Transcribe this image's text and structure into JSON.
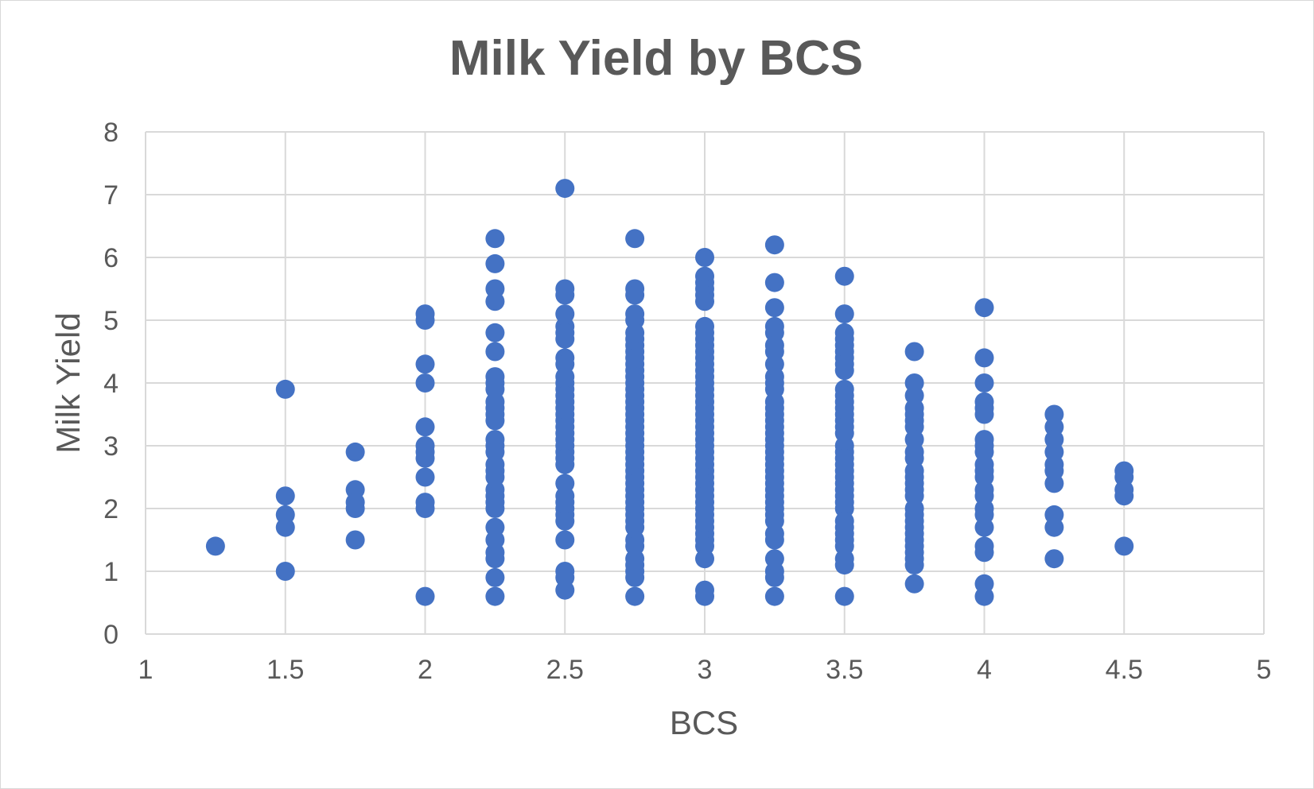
{
  "chart_data": {
    "type": "scatter",
    "title": "Milk Yield by BCS",
    "xlabel": "BCS",
    "ylabel": "Milk Yield",
    "xlim": [
      1,
      5
    ],
    "ylim": [
      0,
      8
    ],
    "xticks": [
      "1",
      "1.5",
      "2",
      "2.5",
      "3",
      "3.5",
      "4",
      "4.5",
      "5"
    ],
    "yticks": [
      "0",
      "1",
      "2",
      "3",
      "4",
      "5",
      "6",
      "7",
      "8"
    ],
    "grid": true,
    "legend": "none",
    "marker_color": "#4472C4",
    "series": [
      {
        "points": [
          [
            1.25,
            1.4
          ],
          [
            1.5,
            3.9
          ],
          [
            1.5,
            2.2
          ],
          [
            1.5,
            1.9
          ],
          [
            1.5,
            1.7
          ],
          [
            1.5,
            1.0
          ],
          [
            1.75,
            2.9
          ],
          [
            1.75,
            2.3
          ],
          [
            1.75,
            2.1
          ],
          [
            1.75,
            2.0
          ],
          [
            1.75,
            1.5
          ],
          [
            2,
            5.1
          ],
          [
            2,
            5.0
          ],
          [
            2,
            4.3
          ],
          [
            2,
            4.0
          ],
          [
            2,
            3.3
          ],
          [
            2,
            3.0
          ],
          [
            2,
            2.9
          ],
          [
            2,
            2.8
          ],
          [
            2,
            2.5
          ],
          [
            2,
            2.1
          ],
          [
            2,
            2.0
          ],
          [
            2,
            0.6
          ],
          [
            2.25,
            6.3
          ],
          [
            2.25,
            5.9
          ],
          [
            2.25,
            5.5
          ],
          [
            2.25,
            5.3
          ],
          [
            2.25,
            4.8
          ],
          [
            2.25,
            4.5
          ],
          [
            2.25,
            4.1
          ],
          [
            2.25,
            4.0
          ],
          [
            2.25,
            3.9
          ],
          [
            2.25,
            3.7
          ],
          [
            2.25,
            3.6
          ],
          [
            2.25,
            3.5
          ],
          [
            2.25,
            3.4
          ],
          [
            2.25,
            3.1
          ],
          [
            2.25,
            3.0
          ],
          [
            2.25,
            2.9
          ],
          [
            2.25,
            2.7
          ],
          [
            2.25,
            2.6
          ],
          [
            2.25,
            2.5
          ],
          [
            2.25,
            2.3
          ],
          [
            2.25,
            2.2
          ],
          [
            2.25,
            2.1
          ],
          [
            2.25,
            2.0
          ],
          [
            2.25,
            1.7
          ],
          [
            2.25,
            1.5
          ],
          [
            2.25,
            1.3
          ],
          [
            2.25,
            1.2
          ],
          [
            2.25,
            0.9
          ],
          [
            2.25,
            0.6
          ],
          [
            2.5,
            7.1
          ],
          [
            2.5,
            5.5
          ],
          [
            2.5,
            5.4
          ],
          [
            2.5,
            5.1
          ],
          [
            2.5,
            4.9
          ],
          [
            2.5,
            4.8
          ],
          [
            2.5,
            4.7
          ],
          [
            2.5,
            4.4
          ],
          [
            2.5,
            4.3
          ],
          [
            2.5,
            4.1
          ],
          [
            2.5,
            4.0
          ],
          [
            2.5,
            3.9
          ],
          [
            2.5,
            3.8
          ],
          [
            2.5,
            3.7
          ],
          [
            2.5,
            3.6
          ],
          [
            2.5,
            3.5
          ],
          [
            2.5,
            3.4
          ],
          [
            2.5,
            3.3
          ],
          [
            2.5,
            3.2
          ],
          [
            2.5,
            3.1
          ],
          [
            2.5,
            3.0
          ],
          [
            2.5,
            2.9
          ],
          [
            2.5,
            2.8
          ],
          [
            2.5,
            2.7
          ],
          [
            2.5,
            2.4
          ],
          [
            2.5,
            2.2
          ],
          [
            2.5,
            2.1
          ],
          [
            2.5,
            2.0
          ],
          [
            2.5,
            1.9
          ],
          [
            2.5,
            1.8
          ],
          [
            2.5,
            1.5
          ],
          [
            2.5,
            1.0
          ],
          [
            2.5,
            0.9
          ],
          [
            2.5,
            0.7
          ],
          [
            2.75,
            6.3
          ],
          [
            2.75,
            5.5
          ],
          [
            2.75,
            5.4
          ],
          [
            2.75,
            5.1
          ],
          [
            2.75,
            5.0
          ],
          [
            2.75,
            4.8
          ],
          [
            2.75,
            4.7
          ],
          [
            2.75,
            4.6
          ],
          [
            2.75,
            4.5
          ],
          [
            2.75,
            4.4
          ],
          [
            2.75,
            4.3
          ],
          [
            2.75,
            4.2
          ],
          [
            2.75,
            4.1
          ],
          [
            2.75,
            4.0
          ],
          [
            2.75,
            3.9
          ],
          [
            2.75,
            3.8
          ],
          [
            2.75,
            3.7
          ],
          [
            2.75,
            3.6
          ],
          [
            2.75,
            3.5
          ],
          [
            2.75,
            3.4
          ],
          [
            2.75,
            3.3
          ],
          [
            2.75,
            3.2
          ],
          [
            2.75,
            3.1
          ],
          [
            2.75,
            3.0
          ],
          [
            2.75,
            2.9
          ],
          [
            2.75,
            2.8
          ],
          [
            2.75,
            2.7
          ],
          [
            2.75,
            2.6
          ],
          [
            2.75,
            2.5
          ],
          [
            2.75,
            2.4
          ],
          [
            2.75,
            2.3
          ],
          [
            2.75,
            2.2
          ],
          [
            2.75,
            2.1
          ],
          [
            2.75,
            2.0
          ],
          [
            2.75,
            1.9
          ],
          [
            2.75,
            1.8
          ],
          [
            2.75,
            1.7
          ],
          [
            2.75,
            1.5
          ],
          [
            2.75,
            1.4
          ],
          [
            2.75,
            1.2
          ],
          [
            2.75,
            1.1
          ],
          [
            2.75,
            1.0
          ],
          [
            2.75,
            0.9
          ],
          [
            2.75,
            0.6
          ],
          [
            3,
            6.0
          ],
          [
            3,
            5.7
          ],
          [
            3,
            5.6
          ],
          [
            3,
            5.5
          ],
          [
            3,
            5.4
          ],
          [
            3,
            5.3
          ],
          [
            3,
            4.9
          ],
          [
            3,
            4.8
          ],
          [
            3,
            4.7
          ],
          [
            3,
            4.6
          ],
          [
            3,
            4.5
          ],
          [
            3,
            4.4
          ],
          [
            3,
            4.3
          ],
          [
            3,
            4.2
          ],
          [
            3,
            4.1
          ],
          [
            3,
            4.0
          ],
          [
            3,
            3.9
          ],
          [
            3,
            3.8
          ],
          [
            3,
            3.7
          ],
          [
            3,
            3.6
          ],
          [
            3,
            3.5
          ],
          [
            3,
            3.4
          ],
          [
            3,
            3.3
          ],
          [
            3,
            3.2
          ],
          [
            3,
            3.1
          ],
          [
            3,
            3.0
          ],
          [
            3,
            2.9
          ],
          [
            3,
            2.8
          ],
          [
            3,
            2.7
          ],
          [
            3,
            2.6
          ],
          [
            3,
            2.5
          ],
          [
            3,
            2.4
          ],
          [
            3,
            2.3
          ],
          [
            3,
            2.2
          ],
          [
            3,
            2.1
          ],
          [
            3,
            2.0
          ],
          [
            3,
            1.9
          ],
          [
            3,
            1.8
          ],
          [
            3,
            1.7
          ],
          [
            3,
            1.6
          ],
          [
            3,
            1.5
          ],
          [
            3,
            1.4
          ],
          [
            3,
            1.2
          ],
          [
            3,
            0.7
          ],
          [
            3,
            0.6
          ],
          [
            3.25,
            6.2
          ],
          [
            3.25,
            5.6
          ],
          [
            3.25,
            5.2
          ],
          [
            3.25,
            4.9
          ],
          [
            3.25,
            4.8
          ],
          [
            3.25,
            4.6
          ],
          [
            3.25,
            4.5
          ],
          [
            3.25,
            4.3
          ],
          [
            3.25,
            4.1
          ],
          [
            3.25,
            4.0
          ],
          [
            3.25,
            3.9
          ],
          [
            3.25,
            3.7
          ],
          [
            3.25,
            3.6
          ],
          [
            3.25,
            3.5
          ],
          [
            3.25,
            3.4
          ],
          [
            3.25,
            3.3
          ],
          [
            3.25,
            3.2
          ],
          [
            3.25,
            3.1
          ],
          [
            3.25,
            3.0
          ],
          [
            3.25,
            2.9
          ],
          [
            3.25,
            2.8
          ],
          [
            3.25,
            2.7
          ],
          [
            3.25,
            2.6
          ],
          [
            3.25,
            2.5
          ],
          [
            3.25,
            2.4
          ],
          [
            3.25,
            2.3
          ],
          [
            3.25,
            2.2
          ],
          [
            3.25,
            2.1
          ],
          [
            3.25,
            2.0
          ],
          [
            3.25,
            1.9
          ],
          [
            3.25,
            1.8
          ],
          [
            3.25,
            1.6
          ],
          [
            3.25,
            1.5
          ],
          [
            3.25,
            1.2
          ],
          [
            3.25,
            1.0
          ],
          [
            3.25,
            0.9
          ],
          [
            3.25,
            0.6
          ],
          [
            3.5,
            5.7
          ],
          [
            3.5,
            5.1
          ],
          [
            3.5,
            4.8
          ],
          [
            3.5,
            4.7
          ],
          [
            3.5,
            4.6
          ],
          [
            3.5,
            4.5
          ],
          [
            3.5,
            4.4
          ],
          [
            3.5,
            4.3
          ],
          [
            3.5,
            4.2
          ],
          [
            3.5,
            3.9
          ],
          [
            3.5,
            3.8
          ],
          [
            3.5,
            3.7
          ],
          [
            3.5,
            3.6
          ],
          [
            3.5,
            3.5
          ],
          [
            3.5,
            3.4
          ],
          [
            3.5,
            3.3
          ],
          [
            3.5,
            3.2
          ],
          [
            3.5,
            3.0
          ],
          [
            3.5,
            2.9
          ],
          [
            3.5,
            2.8
          ],
          [
            3.5,
            2.7
          ],
          [
            3.5,
            2.6
          ],
          [
            3.5,
            2.5
          ],
          [
            3.5,
            2.4
          ],
          [
            3.5,
            2.3
          ],
          [
            3.5,
            2.2
          ],
          [
            3.5,
            2.1
          ],
          [
            3.5,
            2.0
          ],
          [
            3.5,
            1.8
          ],
          [
            3.5,
            1.7
          ],
          [
            3.5,
            1.6
          ],
          [
            3.5,
            1.5
          ],
          [
            3.5,
            1.4
          ],
          [
            3.5,
            1.2
          ],
          [
            3.5,
            1.1
          ],
          [
            3.5,
            0.6
          ],
          [
            3.75,
            4.5
          ],
          [
            3.75,
            4.0
          ],
          [
            3.75,
            3.8
          ],
          [
            3.75,
            3.6
          ],
          [
            3.75,
            3.5
          ],
          [
            3.75,
            3.4
          ],
          [
            3.75,
            3.3
          ],
          [
            3.75,
            3.1
          ],
          [
            3.75,
            2.9
          ],
          [
            3.75,
            2.8
          ],
          [
            3.75,
            2.6
          ],
          [
            3.75,
            2.5
          ],
          [
            3.75,
            2.4
          ],
          [
            3.75,
            2.3
          ],
          [
            3.75,
            2.2
          ],
          [
            3.75,
            2.0
          ],
          [
            3.75,
            1.9
          ],
          [
            3.75,
            1.8
          ],
          [
            3.75,
            1.7
          ],
          [
            3.75,
            1.6
          ],
          [
            3.75,
            1.5
          ],
          [
            3.75,
            1.4
          ],
          [
            3.75,
            1.3
          ],
          [
            3.75,
            1.2
          ],
          [
            3.75,
            1.1
          ],
          [
            3.75,
            0.8
          ],
          [
            4,
            5.2
          ],
          [
            4,
            4.4
          ],
          [
            4,
            4.0
          ],
          [
            4,
            3.7
          ],
          [
            4,
            3.6
          ],
          [
            4,
            3.5
          ],
          [
            4,
            3.1
          ],
          [
            4,
            3.0
          ],
          [
            4,
            2.9
          ],
          [
            4,
            2.7
          ],
          [
            4,
            2.6
          ],
          [
            4,
            2.5
          ],
          [
            4,
            2.3
          ],
          [
            4,
            2.2
          ],
          [
            4,
            2.0
          ],
          [
            4,
            1.9
          ],
          [
            4,
            1.7
          ],
          [
            4,
            1.4
          ],
          [
            4,
            1.3
          ],
          [
            4,
            0.8
          ],
          [
            4,
            0.6
          ],
          [
            4.25,
            3.5
          ],
          [
            4.25,
            3.3
          ],
          [
            4.25,
            3.1
          ],
          [
            4.25,
            2.9
          ],
          [
            4.25,
            2.7
          ],
          [
            4.25,
            2.6
          ],
          [
            4.25,
            2.4
          ],
          [
            4.25,
            1.9
          ],
          [
            4.25,
            1.7
          ],
          [
            4.25,
            1.2
          ],
          [
            4.5,
            2.6
          ],
          [
            4.5,
            2.5
          ],
          [
            4.5,
            2.3
          ],
          [
            4.5,
            2.2
          ],
          [
            4.5,
            1.4
          ]
        ]
      }
    ]
  }
}
